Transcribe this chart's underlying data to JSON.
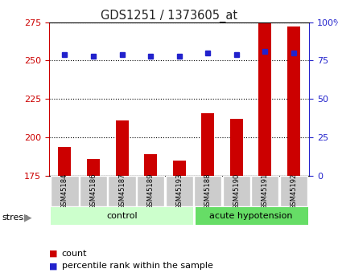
{
  "title": "GDS1251 / 1373605_at",
  "samples": [
    "GSM45184",
    "GSM45186",
    "GSM45187",
    "GSM45189",
    "GSM45193",
    "GSM45188",
    "GSM45190",
    "GSM45191",
    "GSM45192"
  ],
  "counts": [
    194,
    186,
    211,
    189,
    185,
    216,
    212,
    275,
    272
  ],
  "percentiles": [
    79,
    78,
    79,
    78,
    78,
    80,
    79,
    81,
    80
  ],
  "ylim_left": [
    175,
    275
  ],
  "ylim_right": [
    0,
    100
  ],
  "yticks_left": [
    175,
    200,
    225,
    250,
    275
  ],
  "yticks_right": [
    0,
    25,
    50,
    75,
    100
  ],
  "bar_color": "#cc0000",
  "dot_color": "#2222cc",
  "bg_color": "#cccccc",
  "plot_bg": "#ffffff",
  "control_color": "#ccffcc",
  "acute_color": "#66dd66",
  "stress_label": "stress",
  "legend_count": "count",
  "legend_pct": "percentile rank within the sample",
  "title_color": "#222222",
  "left_axis_color": "#cc0000",
  "right_axis_color": "#2222cc",
  "n_control": 5,
  "n_acute": 4
}
